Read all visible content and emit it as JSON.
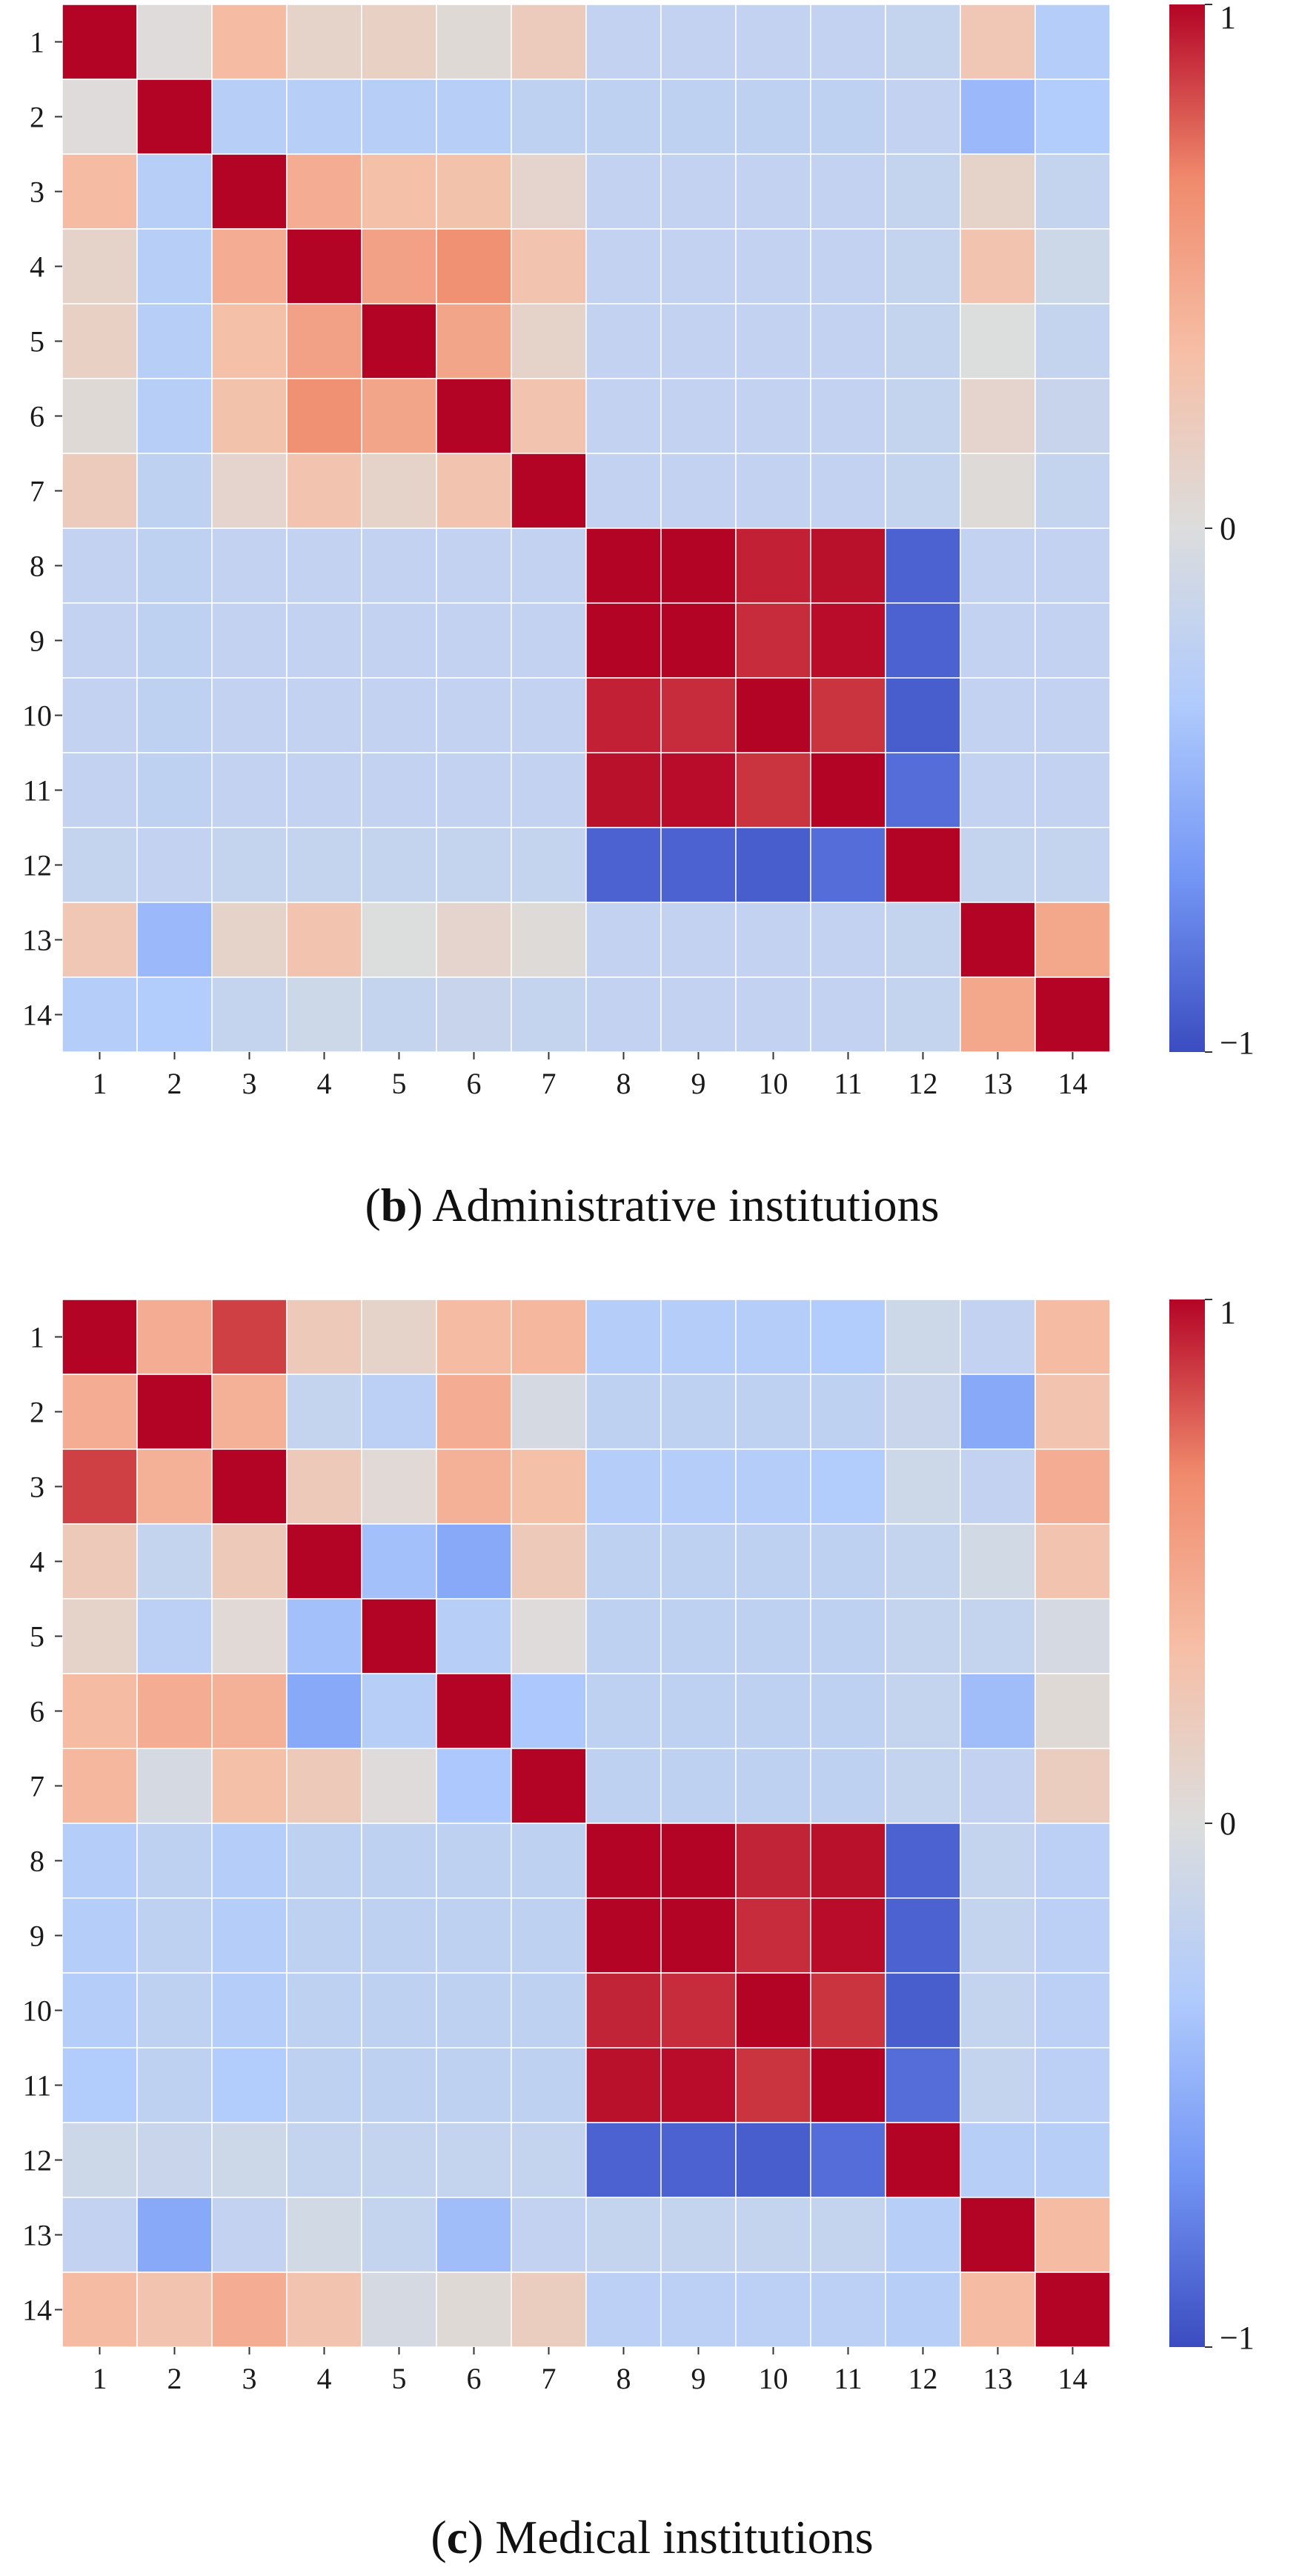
{
  "chart_data": [
    {
      "type": "heatmap",
      "caption_open": "(",
      "caption_letter": "b",
      "caption_rest": ") Administrative institutions",
      "labels": [
        "1",
        "2",
        "3",
        "4",
        "5",
        "6",
        "7",
        "8",
        "9",
        "10",
        "11",
        "12",
        "13",
        "14"
      ],
      "colorbar": {
        "min": -1,
        "max": 1,
        "ticks": [
          "1",
          "0",
          "−1"
        ]
      },
      "values": [
        [
          1.0,
          0.02,
          0.35,
          0.12,
          0.15,
          0.04,
          0.2,
          -0.2,
          -0.2,
          -0.2,
          -0.2,
          -0.18,
          0.25,
          -0.3
        ],
        [
          0.02,
          1.0,
          -0.28,
          -0.28,
          -0.28,
          -0.28,
          -0.22,
          -0.22,
          -0.22,
          -0.22,
          -0.22,
          -0.2,
          -0.45,
          -0.32
        ],
        [
          0.35,
          -0.28,
          1.0,
          0.45,
          0.32,
          0.3,
          0.1,
          -0.2,
          -0.2,
          -0.2,
          -0.2,
          -0.18,
          0.12,
          -0.18
        ],
        [
          0.12,
          -0.28,
          0.45,
          1.0,
          0.52,
          0.62,
          0.28,
          -0.2,
          -0.2,
          -0.2,
          -0.2,
          -0.18,
          0.28,
          -0.12
        ],
        [
          0.15,
          -0.28,
          0.32,
          0.52,
          1.0,
          0.5,
          0.12,
          -0.2,
          -0.2,
          -0.2,
          -0.2,
          -0.18,
          0.0,
          -0.18
        ],
        [
          0.04,
          -0.28,
          0.3,
          0.62,
          0.5,
          1.0,
          0.28,
          -0.2,
          -0.2,
          -0.2,
          -0.2,
          -0.18,
          0.1,
          -0.16
        ],
        [
          0.2,
          -0.22,
          0.1,
          0.28,
          0.12,
          0.28,
          1.0,
          -0.2,
          -0.2,
          -0.2,
          -0.2,
          -0.18,
          0.03,
          -0.18
        ],
        [
          -0.2,
          -0.22,
          -0.2,
          -0.2,
          -0.2,
          -0.2,
          -0.2,
          1.0,
          1.0,
          0.93,
          0.97,
          -0.9,
          -0.2,
          -0.2
        ],
        [
          -0.2,
          -0.22,
          -0.2,
          -0.2,
          -0.2,
          -0.2,
          -0.2,
          1.0,
          1.0,
          0.9,
          0.98,
          -0.9,
          -0.2,
          -0.2
        ],
        [
          -0.2,
          -0.22,
          -0.2,
          -0.2,
          -0.2,
          -0.2,
          -0.2,
          0.93,
          0.9,
          1.0,
          0.88,
          -0.92,
          -0.2,
          -0.2
        ],
        [
          -0.2,
          -0.22,
          -0.2,
          -0.2,
          -0.2,
          -0.2,
          -0.2,
          0.97,
          0.98,
          0.88,
          1.0,
          -0.85,
          -0.2,
          -0.2
        ],
        [
          -0.18,
          -0.2,
          -0.18,
          -0.18,
          -0.18,
          -0.18,
          -0.18,
          -0.9,
          -0.9,
          -0.92,
          -0.85,
          1.0,
          -0.18,
          -0.18
        ],
        [
          0.25,
          -0.45,
          0.12,
          0.28,
          0.0,
          0.1,
          0.03,
          -0.2,
          -0.2,
          -0.2,
          -0.2,
          -0.18,
          1.0,
          0.48
        ],
        [
          -0.3,
          -0.32,
          -0.18,
          -0.12,
          -0.18,
          -0.16,
          -0.18,
          -0.2,
          -0.2,
          -0.2,
          -0.2,
          -0.18,
          0.48,
          1.0
        ]
      ]
    },
    {
      "type": "heatmap",
      "caption_open": "(",
      "caption_letter": "c",
      "caption_rest": ") Medical institutions",
      "labels": [
        "1",
        "2",
        "3",
        "4",
        "5",
        "6",
        "7",
        "8",
        "9",
        "10",
        "11",
        "12",
        "13",
        "14"
      ],
      "colorbar": {
        "min": -1,
        "max": 1,
        "ticks": [
          "1",
          "0",
          "−1"
        ]
      },
      "values": [
        [
          1.0,
          0.45,
          0.85,
          0.22,
          0.12,
          0.35,
          0.38,
          -0.3,
          -0.3,
          -0.3,
          -0.32,
          -0.12,
          -0.2,
          0.35
        ],
        [
          0.45,
          1.0,
          0.42,
          -0.18,
          -0.25,
          0.45,
          -0.05,
          -0.22,
          -0.22,
          -0.22,
          -0.22,
          -0.15,
          -0.55,
          0.28
        ],
        [
          0.85,
          0.42,
          1.0,
          0.22,
          0.05,
          0.42,
          0.32,
          -0.3,
          -0.3,
          -0.3,
          -0.32,
          -0.12,
          -0.2,
          0.45
        ],
        [
          0.22,
          -0.18,
          0.22,
          1.0,
          -0.4,
          -0.55,
          0.22,
          -0.22,
          -0.22,
          -0.22,
          -0.22,
          -0.18,
          -0.08,
          0.28
        ],
        [
          0.12,
          -0.25,
          0.05,
          -0.4,
          1.0,
          -0.28,
          0.02,
          -0.22,
          -0.22,
          -0.22,
          -0.22,
          -0.18,
          -0.18,
          -0.05
        ],
        [
          0.35,
          0.45,
          0.42,
          -0.55,
          -0.28,
          1.0,
          -0.35,
          -0.22,
          -0.22,
          -0.22,
          -0.22,
          -0.18,
          -0.42,
          0.04
        ],
        [
          0.38,
          -0.05,
          0.32,
          0.22,
          0.02,
          -0.35,
          1.0,
          -0.22,
          -0.22,
          -0.22,
          -0.22,
          -0.18,
          -0.2,
          0.18
        ],
        [
          -0.3,
          -0.22,
          -0.3,
          -0.22,
          -0.22,
          -0.22,
          -0.22,
          1.0,
          1.0,
          0.92,
          0.97,
          -0.9,
          -0.18,
          -0.25
        ],
        [
          -0.3,
          -0.22,
          -0.3,
          -0.22,
          -0.22,
          -0.22,
          -0.22,
          1.0,
          1.0,
          0.9,
          0.98,
          -0.9,
          -0.18,
          -0.25
        ],
        [
          -0.3,
          -0.22,
          -0.3,
          -0.22,
          -0.22,
          -0.22,
          -0.22,
          0.92,
          0.9,
          1.0,
          0.88,
          -0.92,
          -0.18,
          -0.25
        ],
        [
          -0.32,
          -0.22,
          -0.32,
          -0.22,
          -0.22,
          -0.22,
          -0.22,
          0.97,
          0.98,
          0.88,
          1.0,
          -0.85,
          -0.18,
          -0.25
        ],
        [
          -0.12,
          -0.15,
          -0.12,
          -0.18,
          -0.18,
          -0.18,
          -0.18,
          -0.9,
          -0.9,
          -0.92,
          -0.85,
          1.0,
          -0.28,
          -0.28
        ],
        [
          -0.2,
          -0.55,
          -0.2,
          -0.08,
          -0.18,
          -0.42,
          -0.2,
          -0.18,
          -0.18,
          -0.18,
          -0.18,
          -0.28,
          1.0,
          0.35
        ],
        [
          0.35,
          0.28,
          0.45,
          0.28,
          -0.05,
          0.04,
          0.18,
          -0.25,
          -0.25,
          -0.25,
          -0.25,
          -0.28,
          0.35,
          1.0
        ]
      ]
    }
  ],
  "colormap": {
    "name": "coolwarm",
    "stops": [
      "#3b4cc0",
      "#7396f5",
      "#b0cbfc",
      "#dcdddd",
      "#f6bfa6",
      "#f08a6c",
      "#b40426"
    ]
  }
}
